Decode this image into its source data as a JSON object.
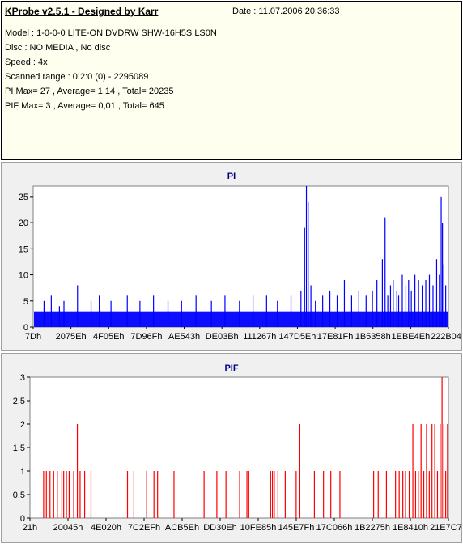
{
  "app_title": "KProbe v2.5.1 - Designed by Karr",
  "date_text": "Date : 11.07.2006 20:36:33",
  "info_lines": [
    "Model : 1-0-0-0 LITE-ON DVDRW SHW-16H5S  LS0N",
    "Disc : NO MEDIA , No disc",
    "Speed : 4x",
    "Scanned range : 0:2:0 (0) - 2295089",
    "PI Max= 27 , Average= 1,14 , Total= 20235",
    "PIF Max= 3 , Average= 0,01 , Total= 645"
  ],
  "colors": {
    "pi": "#0000ff",
    "pif": "#ff0000",
    "title": "#000080",
    "panel_bg": "#f0f0f0",
    "plot_bg": "#ffffff",
    "info_bg": "#fffff0"
  },
  "chart_data": [
    {
      "type": "bar",
      "title": "PI",
      "xlabel": "",
      "ylabel": "",
      "ylim": [
        0,
        27
      ],
      "yticks": [
        0,
        5,
        10,
        15,
        20,
        25
      ],
      "ytick_labels": [
        "0",
        "5",
        "10",
        "15",
        "20",
        "25"
      ],
      "xtick_labels": [
        "7Dh",
        "2075Eh",
        "4F05Eh",
        "7D96Fh",
        "AE543h",
        "DE03Bh",
        "111267h",
        "147D5Eh",
        "17E81Fh",
        "1B5358h",
        "1EBE4Eh",
        "222B04h"
      ],
      "xlim": [
        0,
        2295089
      ],
      "baseline": 3,
      "x": [
        60000,
        100000,
        145000,
        170000,
        245000,
        320000,
        365000,
        430000,
        520000,
        590000,
        665000,
        745000,
        820000,
        900000,
        985000,
        1060000,
        1140000,
        1215000,
        1290000,
        1350000,
        1425000,
        1480000,
        1500000,
        1510000,
        1520000,
        1535000,
        1560000,
        1600000,
        1640000,
        1680000,
        1720000,
        1760000,
        1800000,
        1840000,
        1875000,
        1900000,
        1930000,
        1945000,
        1960000,
        1975000,
        1990000,
        2010000,
        2020000,
        2040000,
        2060000,
        2075000,
        2090000,
        2110000,
        2130000,
        2150000,
        2170000,
        2190000,
        2210000,
        2230000,
        2245000,
        2255000,
        2262000,
        2270000,
        2280000
      ],
      "values": [
        5,
        6,
        4,
        5,
        8,
        5,
        6,
        5,
        6,
        5,
        6,
        5,
        5,
        6,
        5,
        6,
        5,
        6,
        6,
        5,
        6,
        7,
        19,
        27,
        24,
        8,
        5,
        6,
        7,
        6,
        9,
        6,
        7,
        6,
        7,
        9,
        13,
        21,
        6,
        8,
        9,
        7,
        6,
        10,
        8,
        9,
        7,
        10,
        9,
        8,
        9,
        10,
        8,
        13,
        10,
        25,
        20,
        12,
        8
      ]
    },
    {
      "type": "bar",
      "title": "PIF",
      "xlabel": "",
      "ylabel": "",
      "ylim": [
        0,
        3
      ],
      "yticks": [
        0,
        0.5,
        1,
        1.5,
        2,
        2.5,
        3
      ],
      "ytick_labels": [
        "0",
        "0,5",
        "1",
        "1,5",
        "2",
        "2,5",
        "3"
      ],
      "xtick_labels": [
        "21h",
        "20045h",
        "4E020h",
        "7C2EFh",
        "ACB5Eh",
        "DD30Eh",
        "10FE85h",
        "145E7Fh",
        "17C066h",
        "1B2275h",
        "1E8410h",
        "21E7C7h"
      ],
      "xlim": [
        0,
        2295089
      ],
      "x": [
        75000,
        90000,
        110000,
        130000,
        150000,
        175000,
        185000,
        200000,
        215000,
        240000,
        260000,
        275000,
        300000,
        335000,
        535000,
        570000,
        640000,
        680000,
        700000,
        790000,
        955000,
        1025000,
        1075000,
        1150000,
        1190000,
        1200000,
        1320000,
        1330000,
        1340000,
        1360000,
        1400000,
        1460000,
        1480000,
        1560000,
        1610000,
        1650000,
        1700000,
        1885000,
        1910000,
        1955000,
        2005000,
        2025000,
        2045000,
        2060000,
        2080000,
        2100000,
        2115000,
        2130000,
        2145000,
        2160000,
        2175000,
        2190000,
        2205000,
        2220000,
        2235000,
        2250000,
        2260000,
        2270000,
        2280000,
        2290000
      ],
      "values": [
        1,
        1,
        1,
        1,
        1,
        1,
        1,
        1,
        1,
        1,
        2,
        1,
        1,
        1,
        1,
        1,
        1,
        1,
        1,
        1,
        1,
        1,
        1,
        1,
        1,
        1,
        1,
        1,
        1,
        1,
        1,
        1,
        2,
        1,
        1,
        1,
        1,
        1,
        1,
        1,
        1,
        1,
        1,
        1,
        1,
        2,
        1,
        1,
        2,
        1,
        2,
        1,
        2,
        2,
        1,
        2,
        3,
        2,
        1,
        2
      ]
    }
  ]
}
